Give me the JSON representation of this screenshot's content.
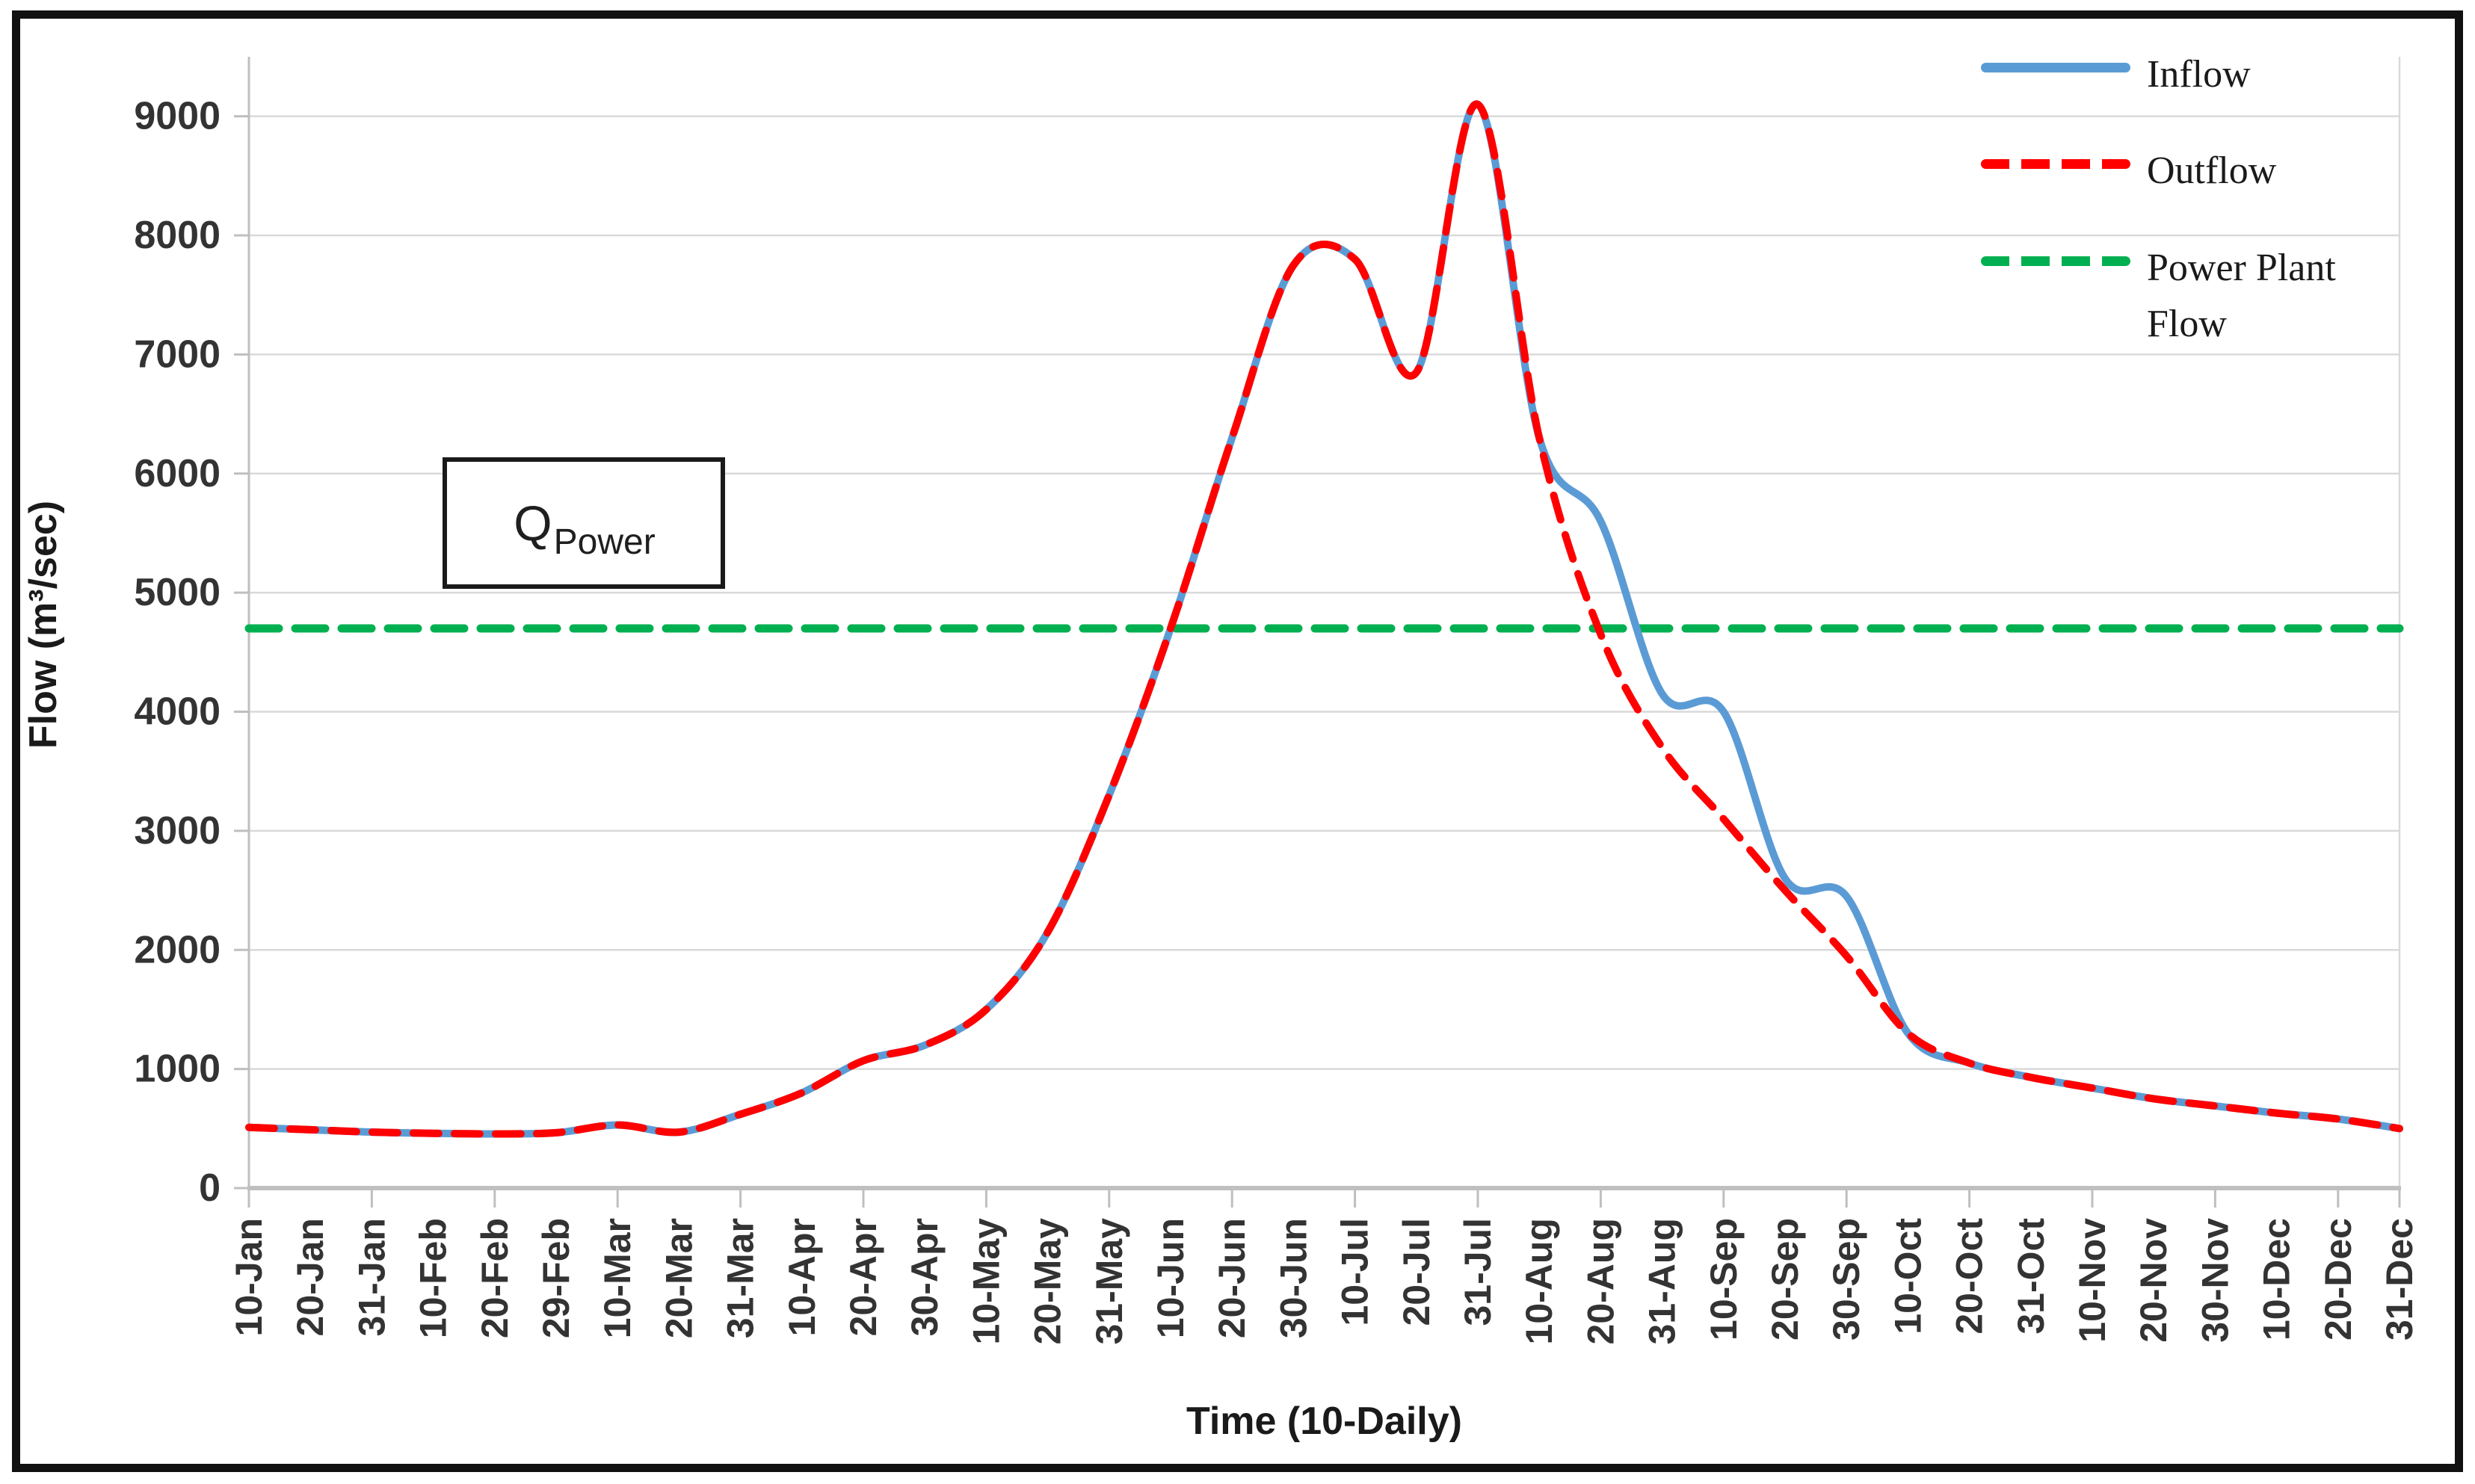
{
  "chart_data": {
    "type": "line",
    "title": "",
    "xlabel": "Time (10-Daily)",
    "ylabel": "Flow (m³/sec)",
    "ylim": [
      0,
      9500
    ],
    "yticks": [
      0,
      1000,
      2000,
      3000,
      4000,
      5000,
      6000,
      7000,
      8000,
      9000
    ],
    "grid": true,
    "legend_position": "top-right",
    "categories": [
      "10-Jan",
      "20-Jan",
      "31-Jan",
      "10-Feb",
      "20-Feb",
      "29-Feb",
      "10-Mar",
      "20-Mar",
      "31-Mar",
      "10-Apr",
      "20-Apr",
      "30-Apr",
      "10-May",
      "20-May",
      "31-May",
      "10-Jun",
      "20-Jun",
      "30-Jun",
      "10-Jul",
      "20-Jul",
      "31-Jul",
      "10-Aug",
      "20-Aug",
      "31-Aug",
      "10-Sep",
      "20-Sep",
      "30-Sep",
      "10-Oct",
      "20-Oct",
      "31-Oct",
      "10-Nov",
      "20-Nov",
      "30-Nov",
      "10-Dec",
      "20-Dec",
      "31-Dec"
    ],
    "series": [
      {
        "name": "Inflow",
        "color": "#5B9BD5",
        "style": "solid",
        "values": [
          510,
          490,
          470,
          460,
          455,
          465,
          530,
          470,
          620,
          800,
          1070,
          1200,
          1500,
          2150,
          3300,
          4700,
          6300,
          7750,
          7800,
          6850,
          9100,
          6300,
          5600,
          4150,
          4000,
          2600,
          2450,
          1300,
          1050,
          930,
          840,
          750,
          690,
          630,
          580,
          500
        ]
      },
      {
        "name": "Outflow",
        "color": "#FF0000",
        "style": "dashed",
        "values": [
          510,
          490,
          470,
          460,
          455,
          465,
          530,
          470,
          620,
          800,
          1070,
          1200,
          1500,
          2150,
          3300,
          4700,
          6300,
          7750,
          7800,
          6850,
          9100,
          6300,
          4650,
          3700,
          3100,
          2500,
          1950,
          1300,
          1050,
          930,
          840,
          750,
          690,
          630,
          580,
          500
        ]
      },
      {
        "name": "Power Plant Flow",
        "color": "#00B050",
        "style": "dashed",
        "constant_value": 4700
      }
    ],
    "annotation": {
      "text_main": "Q",
      "text_sub": "Power"
    }
  },
  "axis": {
    "y_title": "Flow (m³/sec)",
    "x_title": "Time (10-Daily)"
  },
  "legend": {
    "inflow_label": "Inflow",
    "outflow_label": "Outflow",
    "power_label": "Power Plant Flow"
  },
  "colors": {
    "inflow": "#5B9BD5",
    "outflow": "#FF0000",
    "power_plant": "#00B050",
    "gridline": "#d9d9d9",
    "axis_line": "#bfbfbf",
    "text": "#333333"
  }
}
